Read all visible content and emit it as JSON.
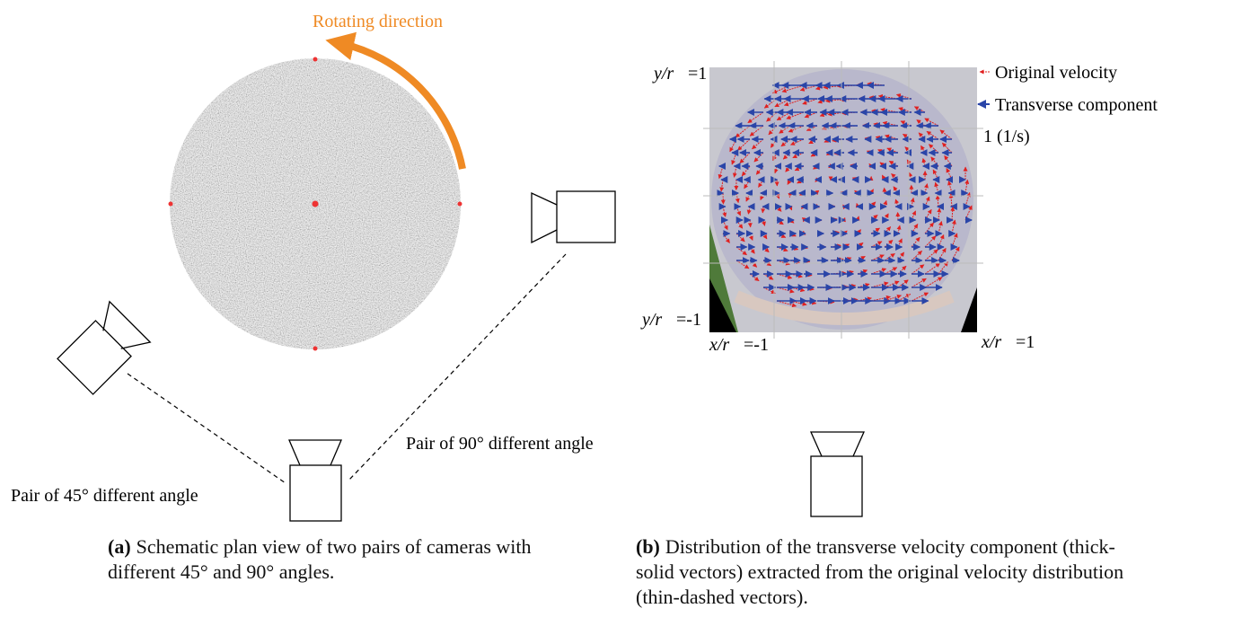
{
  "panel_a": {
    "rotation_label": "Rotating direction",
    "pair_90_label": "Pair of 90° different angle",
    "pair_45_label": "Pair of 45° different angle",
    "caption_tag": "(a)",
    "caption_text": "Schematic plan view of two pairs of cameras with different 45° and 90° angles."
  },
  "panel_b": {
    "y_top": {
      "var": "y/r",
      "eq": "=1"
    },
    "y_bottom": {
      "var": "y/r",
      "eq": "=-1"
    },
    "x_left": {
      "var": "x/r",
      "eq": "=-1"
    },
    "x_right": {
      "var": "x/r",
      "eq": "=1"
    },
    "legend": {
      "original": "Original velocity",
      "transverse": "Transverse component",
      "scale": "1 (1/s)"
    },
    "caption_tag": "(b)",
    "caption_text": "Distribution of the transverse velocity component (thick-solid vectors) extracted from the original velocity distribution (thin-dashed vectors)."
  }
}
